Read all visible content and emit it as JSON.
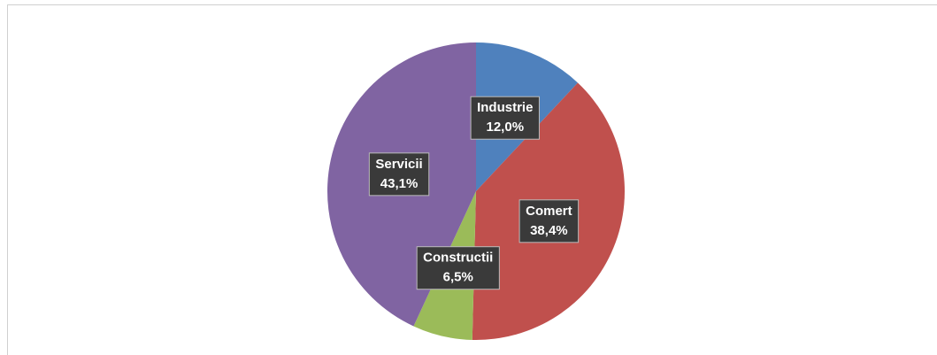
{
  "chart_data": {
    "type": "pie",
    "categories": [
      "Industrie",
      "Comert",
      "Constructii",
      "Servicii"
    ],
    "values": [
      12.0,
      38.4,
      6.5,
      43.1
    ],
    "value_labels": [
      "12,0%",
      "38,4%",
      "6,5%",
      "43,1%"
    ],
    "colors": [
      "#4f81bd",
      "#c0504d",
      "#9bbb59",
      "#8064a2"
    ]
  }
}
